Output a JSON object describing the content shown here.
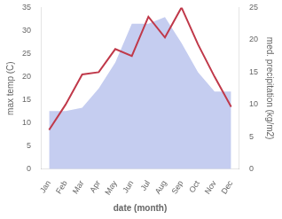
{
  "chart_data": {
    "type": "line",
    "xlabel": "date (month)",
    "ylabel": "max temp (C)",
    "y2label": "med. precipitation (kg/m2)",
    "categories": [
      "Jan",
      "Feb",
      "Mar",
      "Apr",
      "May",
      "Jun",
      "Jul",
      "Aug",
      "Sep",
      "Oct",
      "Nov",
      "Dec"
    ],
    "series": [
      {
        "type": "area",
        "axis": "y2",
        "color": "#c5cdf0",
        "values": [
          9.0,
          9.0,
          9.5,
          12.5,
          16.5,
          22.5,
          22.5,
          23.5,
          19.5,
          15.0,
          12.0,
          12.0
        ]
      },
      {
        "type": "line",
        "color": "#c0394a",
        "values": [
          8.5,
          14.0,
          20.5,
          21.0,
          26.0,
          24.5,
          33.0,
          28.5,
          35.0,
          27.0,
          20.0,
          13.5
        ]
      }
    ],
    "ylim": [
      0,
      35
    ],
    "yticks": [
      0,
      5,
      10,
      15,
      20,
      25,
      30,
      35
    ],
    "y2lim": [
      0,
      25
    ],
    "y2ticks": [
      0,
      5,
      10,
      15,
      20,
      25
    ],
    "grid": false
  }
}
